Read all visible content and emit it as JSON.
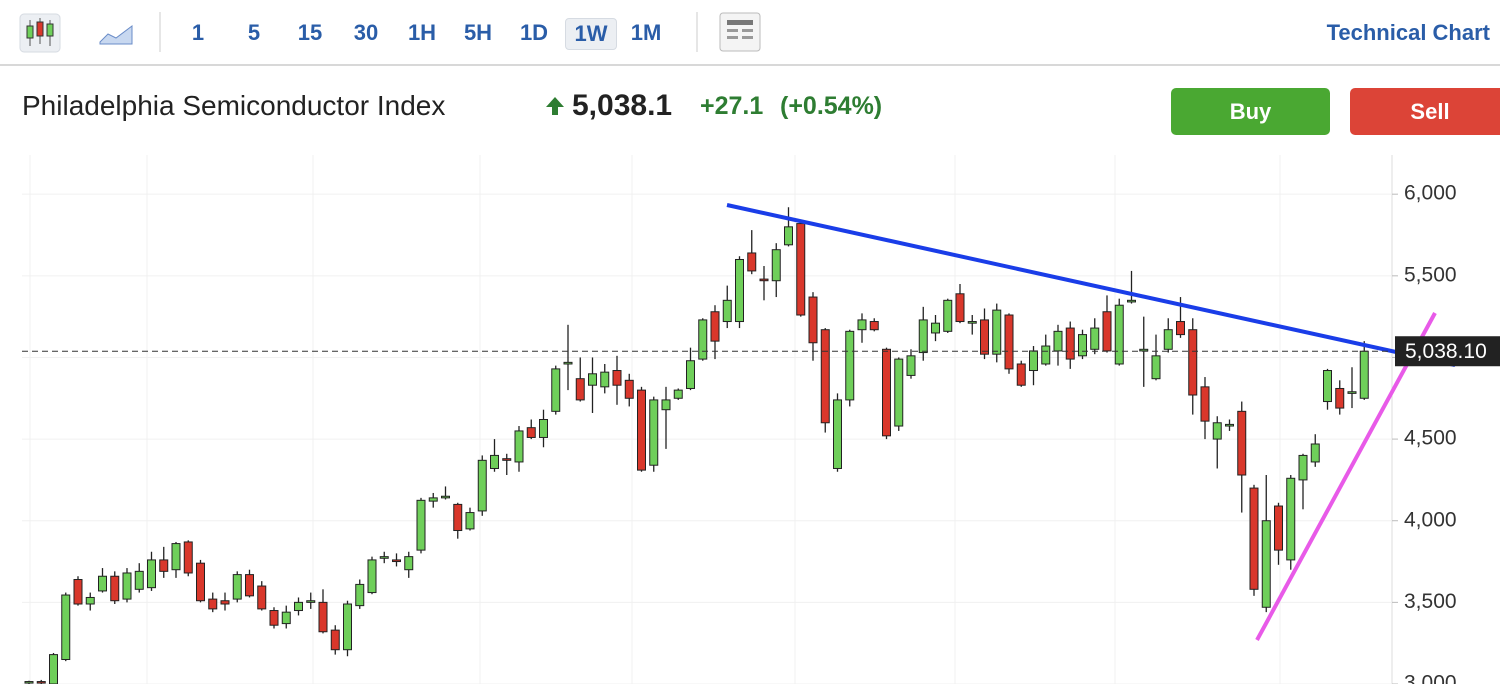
{
  "toolbar": {
    "intervals": [
      "1",
      "5",
      "15",
      "30",
      "1H",
      "5H",
      "1D",
      "1W",
      "1M"
    ],
    "active": "1W",
    "link": "Technical Chart"
  },
  "header": {
    "name": "Philadelphia Semiconductor Index",
    "price": "5,038.1",
    "change": "+27.1",
    "change_pct": "(+0.54%)",
    "buy": "Buy",
    "sell": "Sell"
  },
  "chart_data": {
    "type": "candlestick",
    "up_color": "#6fcf5a",
    "down_color": "#d9372b",
    "ylim": [
      3000,
      6240
    ],
    "yticks": [
      {
        "value": 3000,
        "label": "3,000"
      },
      {
        "value": 3500,
        "label": "3,500"
      },
      {
        "value": 4000,
        "label": "4,000"
      },
      {
        "value": 4500,
        "label": "4,500"
      },
      {
        "value": 5000,
        "label": "5,000"
      },
      {
        "value": 5500,
        "label": "5,500"
      },
      {
        "value": 6000,
        "label": "6,000"
      }
    ],
    "grid": true,
    "last_price": {
      "value": 5038.1,
      "label": "5,038.10"
    },
    "open": [
      3010,
      3015,
      3000,
      3150,
      3640,
      3490,
      3570,
      3660,
      3520,
      3580,
      3590,
      3760,
      3700,
      3870,
      3740,
      3520,
      3510,
      3520,
      3670,
      3600,
      3450,
      3370,
      3450,
      3500,
      3500,
      3330,
      3210,
      3480,
      3560,
      3770,
      3760,
      3700,
      3820,
      4120,
      4140,
      4100,
      3950,
      4060,
      4320,
      4380,
      4360,
      4570,
      4510,
      4670,
      4960,
      4870,
      4830,
      4820,
      4920,
      4860,
      4800,
      4340,
      4680,
      4750,
      4810,
      4990,
      5280,
      5220,
      5220,
      5640,
      5480,
      5470,
      5690,
      5820,
      5370,
      5170,
      4320,
      4740,
      5170,
      5220,
      5050,
      4580,
      4890,
      5030,
      5150,
      5160,
      5390,
      5210,
      5230,
      5020,
      5260,
      4960,
      4920,
      4960,
      5040,
      5180,
      5010,
      5050,
      5280,
      4960,
      5340,
      5040,
      4870,
      5050,
      5220,
      5170,
      4820,
      4500,
      4580,
      4670,
      4200,
      3470,
      4090,
      3760,
      4250,
      4360,
      4730,
      4810,
      4780,
      4750
    ],
    "high": [
      3020,
      3025,
      3190,
      3560,
      3660,
      3560,
      3710,
      3690,
      3710,
      3740,
      3810,
      3840,
      3870,
      3880,
      3760,
      3560,
      3560,
      3690,
      3700,
      3630,
      3470,
      3480,
      3530,
      3560,
      3580,
      3360,
      3510,
      3640,
      3780,
      3810,
      3800,
      3810,
      4140,
      4170,
      4210,
      4110,
      4080,
      4400,
      4500,
      4410,
      4580,
      4620,
      4680,
      4950,
      5200,
      5000,
      5000,
      4960,
      5010,
      4900,
      4820,
      4760,
      4820,
      4810,
      5060,
      5240,
      5320,
      5440,
      5620,
      5780,
      5560,
      5700,
      5920,
      5830,
      5400,
      5180,
      4780,
      5170,
      5270,
      5240,
      5060,
      5000,
      5050,
      5310,
      5260,
      5360,
      5450,
      5260,
      5300,
      5330,
      5270,
      4980,
      5070,
      5140,
      5200,
      5220,
      5170,
      5240,
      5380,
      5360,
      5530,
      5250,
      5140,
      5240,
      5370,
      5240,
      4880,
      4640,
      4620,
      4730,
      4220,
      4280,
      4110,
      4280,
      4410,
      4530,
      4930,
      4860,
      4940,
      5100
    ],
    "low": [
      2990,
      3000,
      2990,
      3140,
      3480,
      3450,
      3560,
      3490,
      3500,
      3560,
      3570,
      3650,
      3650,
      3660,
      3500,
      3440,
      3450,
      3500,
      3530,
      3450,
      3340,
      3340,
      3420,
      3460,
      3310,
      3180,
      3170,
      3460,
      3550,
      3740,
      3720,
      3650,
      3800,
      4080,
      4130,
      3890,
      3940,
      4030,
      4300,
      4280,
      4300,
      4500,
      4450,
      4650,
      4800,
      4730,
      4660,
      4780,
      4710,
      4700,
      4300,
      4300,
      4440,
      4740,
      4800,
      4980,
      4990,
      5180,
      5180,
      5510,
      5350,
      5370,
      5680,
      5250,
      4980,
      4540,
      4300,
      4700,
      5090,
      5160,
      4500,
      4550,
      4870,
      4980,
      5100,
      5150,
      5210,
      5140,
      4990,
      4970,
      4900,
      4820,
      4830,
      4950,
      4950,
      4930,
      4990,
      5020,
      5030,
      4950,
      5330,
      4820,
      4860,
      5030,
      5120,
      4650,
      4500,
      4320,
      4550,
      4050,
      3540,
      3440,
      3730,
      3700,
      4070,
      4330,
      4680,
      4650,
      4690,
      4740
    ],
    "close": [
      3015,
      3010,
      3180,
      3545,
      3490,
      3530,
      3660,
      3510,
      3680,
      3690,
      3760,
      3690,
      3860,
      3680,
      3510,
      3460,
      3490,
      3670,
      3540,
      3460,
      3360,
      3440,
      3500,
      3510,
      3320,
      3210,
      3490,
      3610,
      3760,
      3780,
      3750,
      3780,
      4125,
      4140,
      4150,
      3940,
      4050,
      4370,
      4400,
      4370,
      4550,
      4510,
      4620,
      4930,
      4970,
      4740,
      4900,
      4910,
      4830,
      4750,
      4310,
      4740,
      4740,
      4800,
      4980,
      5230,
      5100,
      5350,
      5600,
      5530,
      5470,
      5660,
      5800,
      5260,
      5090,
      4600,
      4740,
      5160,
      5230,
      5170,
      4520,
      4990,
      5010,
      5230,
      5210,
      5350,
      5220,
      5220,
      5020,
      5290,
      4930,
      4830,
      5040,
      5070,
      5160,
      4990,
      5140,
      5180,
      5040,
      5320,
      5350,
      5050,
      5010,
      5170,
      5140,
      4770,
      4610,
      4600,
      4590,
      4280,
      3580,
      4000,
      3820,
      4260,
      4400,
      4470,
      4920,
      4690,
      4790,
      5038.1
    ]
  }
}
